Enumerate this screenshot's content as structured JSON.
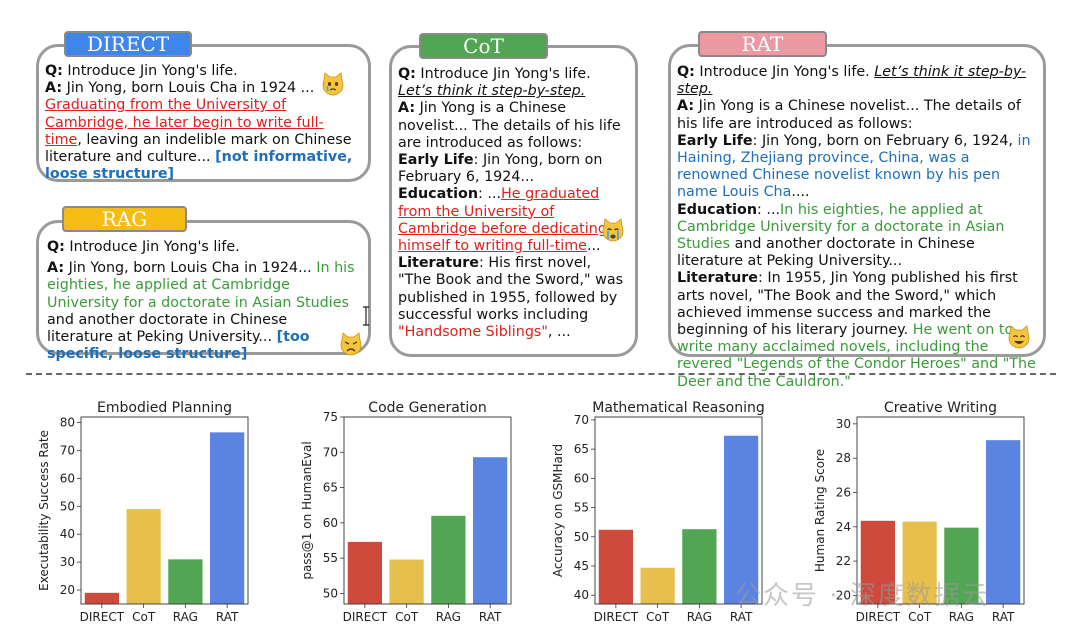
{
  "examples": {
    "direct": {
      "tag": "DIRECT",
      "tag_color": "#3f86e8",
      "q_label": "Q:",
      "q_text": "Introduce Jin Yong's life.",
      "a_label": "A:",
      "a_intro": "Jin Yong, born Louis Cha in 1924 ...",
      "a_hallucination": "Graduating from the University of Cambridge, he later begin to write full-time",
      "a_rest": ", leaving an indelible mark on Chinese literature and culture...",
      "verdict": "[not informative, loose structure]"
    },
    "rag": {
      "tag": "RAG",
      "tag_color": "#f5bd14",
      "q_label": "Q:",
      "q_text": "Introduce Jin Yong's life.",
      "a_label": "A:",
      "a_intro": "Jin Yong, born Louis Cha in 1924...",
      "a_retrieved": "In his eighties, he applied at Cambridge University for a doctorate in Asian Studies",
      "a_rest": "and another doctorate in Chinese literature at Peking University...",
      "verdict": "[too specific, loose structure]"
    },
    "cot": {
      "tag": "CoT",
      "tag_color": "#52a552",
      "q_label": "Q:",
      "q_text": "Introduce Jin Yong's life.",
      "q_cue": "Let’s think it step-by-step.",
      "a_label": "A:",
      "a_intro": "Jin Yong is a Chinese novelist... The details of his life are introduced as follows:",
      "early_label": "Early Life",
      "early_text": ": Jin Yong, born on February 6, 1924...",
      "edu_label": "Education",
      "edu_pre": ": ...",
      "edu_hallucination": "He graduated from the University of Cambridge before dedicating himself to writing full-time",
      "edu_post": "...",
      "lit_label": "Literature",
      "lit_text": ": His first novel, \"The Book and the Sword,\" was published in 1955, followed by successful works including",
      "lit_hallucination": "\"Handsome Siblings\"",
      "lit_post": ", ..."
    },
    "rat": {
      "tag": "RAT",
      "tag_color": "#eb9aa3",
      "q_label": "Q:",
      "q_text": "Introduce Jin Yong's life.",
      "q_cue": "Let’s think it step-by-step.",
      "a_label": "A:",
      "a_intro": "Jin Yong is a Chinese novelist... The details of his life are introduced as follows:",
      "early_label": "Early Life",
      "early_pre": ": Jin Yong, born on February 6, 1924,",
      "early_blue": "in Haining, Zhejiang province, China, was a renowned Chinese novelist known by his pen name Louis Cha",
      "early_post": "....",
      "edu_label": "Education",
      "edu_pre": ": ...",
      "edu_green": "In his eighties, he applied at Cambridge University for a doctorate in Asian Studies",
      "edu_post": "and another doctorate in Chinese literature at Peking University...",
      "lit_label": "Literature",
      "lit_text": ": In 1955, Jin Yong published his first arts novel, \"The Book and the Sword,\" which achieved immense success and marked the beginning of his literary journey.",
      "lit_green": "He went on to write many acclaimed novels, including the revered \"Legends of the Condor Heroes\" and \"The Deer and the Cauldron.\""
    }
  },
  "watermark": "公众号 · 深度数据云",
  "chart_data": [
    {
      "type": "bar",
      "title": "Embodied Planning",
      "ylabel": "Executability Success Rate",
      "categories": [
        "DIRECT",
        "CoT",
        "RAG",
        "RAT"
      ],
      "values": [
        19,
        49,
        31,
        76.5
      ],
      "ylim": [
        15,
        82
      ],
      "yticks": [
        20,
        30,
        40,
        50,
        60,
        70,
        80
      ],
      "colors": [
        "#cd4a3c",
        "#e6bf4d",
        "#52a552",
        "#5b84e0"
      ]
    },
    {
      "type": "bar",
      "title": "Code Generation",
      "ylabel": "pass@1 on HumanEval",
      "categories": [
        "DIRECT",
        "CoT",
        "RAG",
        "RAT"
      ],
      "values": [
        57.3,
        54.8,
        61,
        69.3
      ],
      "ylim": [
        48.5,
        75
      ],
      "yticks": [
        50,
        55,
        60,
        65,
        70,
        75
      ],
      "colors": [
        "#cd4a3c",
        "#e6bf4d",
        "#52a552",
        "#5b84e0"
      ]
    },
    {
      "type": "bar",
      "title": "Mathematical Reasoning",
      "ylabel": "Accuracy on GSMHard",
      "categories": [
        "DIRECT",
        "CoT",
        "RAG",
        "RAT"
      ],
      "values": [
        51.2,
        44.7,
        51.3,
        67.3
      ],
      "ylim": [
        38.5,
        70.5
      ],
      "yticks": [
        40,
        45,
        50,
        55,
        60,
        65,
        70
      ],
      "colors": [
        "#cd4a3c",
        "#e6bf4d",
        "#52a552",
        "#5b84e0"
      ]
    },
    {
      "type": "bar",
      "title": "Creative Writing",
      "ylabel": "Human Rating Score",
      "categories": [
        "DIRECT",
        "CoT",
        "RAG",
        "RAT"
      ],
      "values": [
        24.35,
        24.3,
        23.95,
        29.05
      ],
      "ylim": [
        19.5,
        30.4
      ],
      "yticks": [
        20,
        22,
        24,
        26,
        28,
        30
      ],
      "colors": [
        "#cd4a3c",
        "#e6bf4d",
        "#52a552",
        "#5b84e0"
      ]
    }
  ]
}
